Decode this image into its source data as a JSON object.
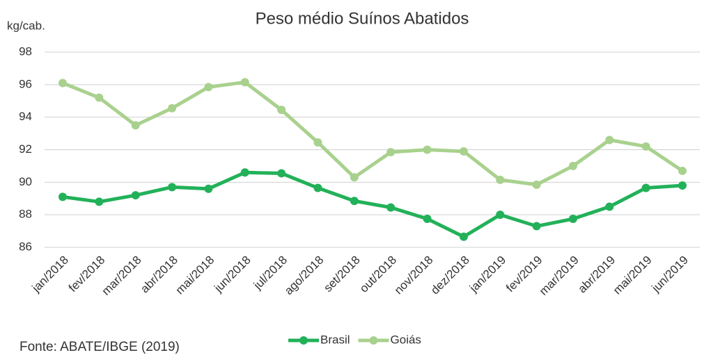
{
  "chart_data": {
    "type": "line",
    "title": "Peso médio Suínos Abatidos",
    "y_label": "kg/cab.",
    "source": "Fonte: ABATE/IBGE (2019)",
    "categories": [
      "jan/2018",
      "fev/2018",
      "mar/2018",
      "abr/2018",
      "mai/2018",
      "jun/2018",
      "jul/2018",
      "ago/2018",
      "set/2018",
      "out/2018",
      "nov/2018",
      "dez/2018",
      "jan/2019",
      "fev/2019",
      "mar/2019",
      "abr/2019",
      "mai/2019",
      "jun/2019"
    ],
    "series": [
      {
        "name": "Brasil",
        "color": "#22b159",
        "values": [
          89.1,
          88.8,
          89.2,
          89.7,
          89.6,
          90.6,
          90.55,
          89.65,
          88.85,
          88.45,
          87.75,
          86.65,
          88.0,
          87.3,
          87.75,
          88.5,
          89.65,
          89.8
        ]
      },
      {
        "name": "Goiás",
        "color": "#a9d18e",
        "values": [
          96.1,
          95.2,
          93.5,
          94.55,
          95.85,
          96.15,
          94.45,
          92.45,
          90.3,
          91.85,
          92.0,
          91.9,
          90.15,
          89.85,
          91.0,
          92.6,
          92.2,
          90.7
        ]
      }
    ],
    "ylim": [
      86,
      98
    ],
    "yticks": [
      86,
      88,
      90,
      92,
      94,
      96,
      98
    ],
    "grid": true,
    "legend": "bottom"
  }
}
